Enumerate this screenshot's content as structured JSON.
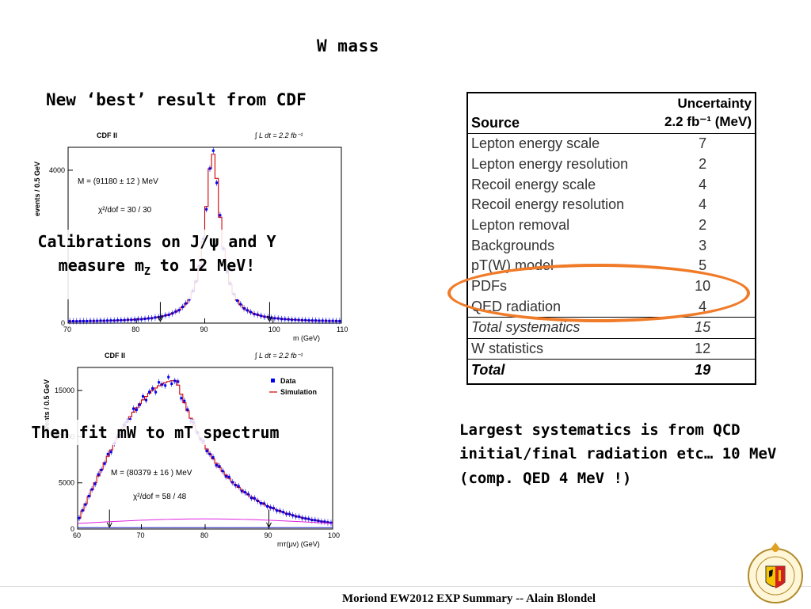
{
  "slide": {
    "title": "W  mass",
    "subtitle": "New ‘best’ result from CDF",
    "overlay_zmass_line1": "Calibrations on J/ψ and Υ",
    "overlay_zmass_line2a": "measure m",
    "overlay_zmass_sub": "Z",
    "overlay_zmass_line2b": " to 12 MeV!",
    "overlay_mt": "Then fit mW to mT spectrum",
    "comment_line1": "Largest systematics is from QCD",
    "comment_line2": "initial/final radiation etc… 10 MeV",
    "comment_line3": "(comp. QED 4 MeV !)",
    "footer": "Moriond EW2012 EXP Summary -- Alain Blondel",
    "logo_text": "SCHOLA GENEVENSIS 1559",
    "highlight_color": "#f07b28"
  },
  "table": {
    "col_source": "Source",
    "col_unc_line1": "Uncertainty",
    "col_unc_line2": "2.2 fb⁻¹ (MeV)",
    "rows": [
      {
        "source": "Lepton energy scale",
        "value": "7"
      },
      {
        "source": "Lepton energy resolution",
        "value": "2"
      },
      {
        "source": "Recoil energy scale",
        "value": "4"
      },
      {
        "source": "Recoil energy resolution",
        "value": "4"
      },
      {
        "source": "Lepton removal",
        "value": "2"
      },
      {
        "source": "Backgrounds",
        "value": "3"
      },
      {
        "source": "pT(W) model",
        "value": "5"
      },
      {
        "source": "PDFs",
        "value": "10"
      },
      {
        "source": "QED radiation",
        "value": "4"
      }
    ],
    "total_syst": {
      "source": "Total systematics",
      "value": "15"
    },
    "stat": {
      "source": "W statistics",
      "value": "12"
    },
    "total": {
      "source": "Total",
      "value": "19"
    }
  },
  "chart_data": [
    {
      "type": "line",
      "header_left": "CDF II",
      "header_right": "∫ L dt = 2.2 fb⁻¹",
      "xlabel": "m    (GeV)",
      "ylabel": "events / 0.5 GeV",
      "xlim": [
        70,
        110
      ],
      "ylim": [
        0,
        4600
      ],
      "xticks": [
        70,
        80,
        90,
        100,
        110
      ],
      "yticks": [
        0,
        4000
      ],
      "annotation1": "M  = (91180 ± 12    ) MeV",
      "annotation2": "χ²/dof = 30 / 30",
      "peak_x": 91.18,
      "peak_y": 4400,
      "width_gamma": 2.5,
      "markers_x": [
        83.5,
        99.5
      ]
    },
    {
      "type": "line",
      "header_left": "CDF II",
      "header_right": "∫ L dt = 2.2 fb⁻¹",
      "xlabel": "mᴛ(μν) (GeV)",
      "ylabel": "events / 0.5 GeV",
      "xlim": [
        60,
        100
      ],
      "ylim": [
        0,
        17500
      ],
      "xticks": [
        60,
        70,
        80,
        90,
        100
      ],
      "yticks": [
        0,
        5000,
        10000,
        15000
      ],
      "legend": [
        "Data",
        "Simulation"
      ],
      "annotation1": "M  = (80379 ± 16    ) MeV",
      "annotation2": "χ²/dof = 58 / 48",
      "peak_x": 75.5,
      "peak_y": 16100,
      "markers_x": [
        65,
        90
      ]
    }
  ]
}
